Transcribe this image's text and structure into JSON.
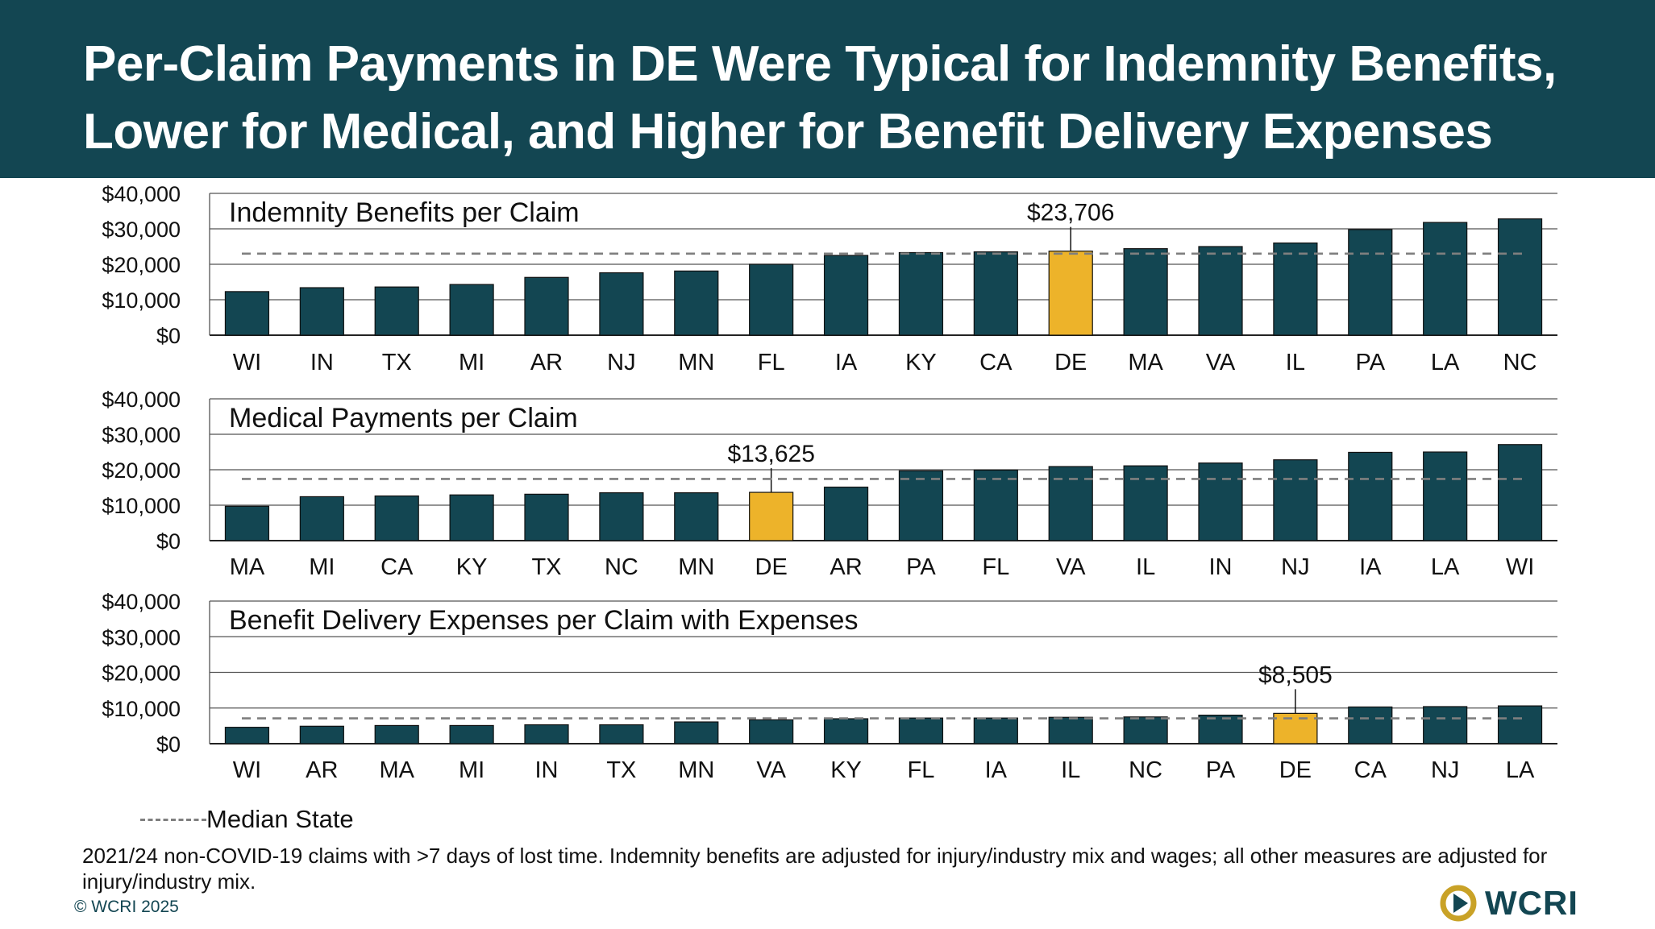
{
  "header": {
    "title_line1": "Per-Claim Payments in DE Were Typical for Indemnity Benefits,",
    "title_line2": "Lower for Medical, and Higher for Benefit Delivery Expenses"
  },
  "colors": {
    "header_bg": "#134652",
    "bar": "#134652",
    "highlight": "#EDB32A",
    "median_line": "#7f7f7f",
    "grid": "#555555"
  },
  "chart_data": [
    {
      "type": "bar",
      "title": "Indemnity Benefits per Claim",
      "categories": [
        "WI",
        "IN",
        "TX",
        "MI",
        "AR",
        "NJ",
        "MN",
        "FL",
        "IA",
        "KY",
        "CA",
        "DE",
        "MA",
        "VA",
        "IL",
        "PA",
        "LA",
        "NC"
      ],
      "values": [
        12300,
        13400,
        13600,
        14300,
        16300,
        17600,
        18100,
        20000,
        22500,
        23300,
        23500,
        23706,
        24400,
        25000,
        26000,
        29800,
        31800,
        32800
      ],
      "highlight": "DE",
      "highlight_label": "$23,706",
      "median": 23000,
      "ylim": [
        0,
        40000
      ],
      "yticks": [
        "$0",
        "$10,000",
        "$20,000",
        "$30,000",
        "$40,000"
      ],
      "xlabel": "",
      "ylabel": ""
    },
    {
      "type": "bar",
      "title": "Medical Payments per Claim",
      "categories": [
        "MA",
        "MI",
        "CA",
        "KY",
        "TX",
        "NC",
        "MN",
        "DE",
        "AR",
        "PA",
        "FL",
        "VA",
        "IL",
        "IN",
        "NJ",
        "IA",
        "LA",
        "WI"
      ],
      "values": [
        9700,
        12400,
        12600,
        12900,
        13100,
        13500,
        13500,
        13625,
        15100,
        19700,
        19900,
        20900,
        21100,
        21900,
        22800,
        24900,
        25000,
        27100
      ],
      "highlight": "DE",
      "highlight_label": "$13,625",
      "median": 17400,
      "ylim": [
        0,
        40000
      ],
      "yticks": [
        "$0",
        "$10,000",
        "$20,000",
        "$30,000",
        "$40,000"
      ],
      "xlabel": "",
      "ylabel": ""
    },
    {
      "type": "bar",
      "title": "Benefit Delivery Expenses per Claim with Expenses",
      "categories": [
        "WI",
        "AR",
        "MA",
        "MI",
        "IN",
        "TX",
        "MN",
        "VA",
        "KY",
        "FL",
        "IA",
        "IL",
        "NC",
        "PA",
        "DE",
        "CA",
        "NJ",
        "LA"
      ],
      "values": [
        4600,
        4900,
        5100,
        5100,
        5300,
        5300,
        6100,
        6700,
        7000,
        7200,
        7200,
        7400,
        7500,
        8000,
        8505,
        10300,
        10400,
        10600
      ],
      "highlight": "DE",
      "highlight_label": "$8,505",
      "median": 7100,
      "ylim": [
        0,
        40000
      ],
      "yticks": [
        "$0",
        "$10,000",
        "$20,000",
        "$30,000",
        "$40,000"
      ],
      "xlabel": "",
      "ylabel": ""
    }
  ],
  "legend": {
    "median_label": "Median State"
  },
  "footnote": "2021/24 non-COVID-19 claims with >7 days of lost time. Indemnity benefits are adjusted for injury/industry mix and wages; all other measures are adjusted for injury/industry mix.",
  "copyright": "© WCRI 2025",
  "logo": {
    "text": "WCRI"
  }
}
